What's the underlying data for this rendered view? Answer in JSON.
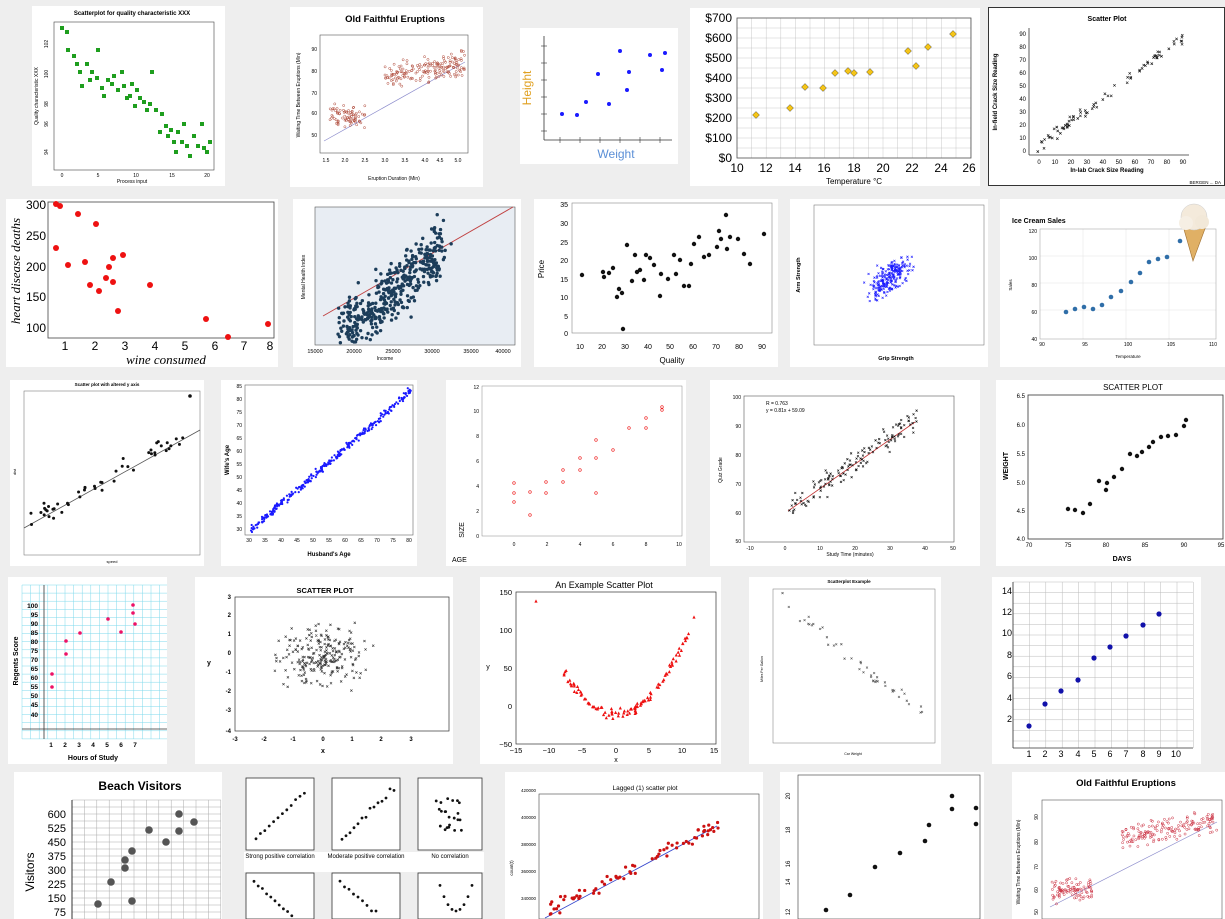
{
  "tiles": {
    "t1": {
      "title": "Scatterplot for quality characteristic XXX",
      "xlabel": "Process input",
      "ylabel": "Quality characteristic XXX",
      "xticks": [
        "0",
        "5",
        "10",
        "15",
        "20"
      ],
      "yticks": [
        "102",
        "100",
        "98",
        "96",
        "94"
      ]
    },
    "t2": {
      "title": "Old Faithful Eruptions",
      "xlabel": "Eruption Duration (Min)",
      "ylabel": "Waiting Time Between Eruptions (Min)",
      "xticks": [
        "1.5",
        "2.0",
        "2.5",
        "3.0",
        "3.5",
        "4.0",
        "4.5",
        "5.0"
      ],
      "yticks": [
        "90",
        "80",
        "70",
        "60",
        "50"
      ]
    },
    "t3": {
      "xlabel": "Weight",
      "ylabel": "Height"
    },
    "t4": {
      "xlabel": "Temperature °C",
      "xticks": [
        "10",
        "12",
        "14",
        "16",
        "18",
        "20",
        "22",
        "24",
        "26"
      ],
      "yticks": [
        "$700",
        "$600",
        "$500",
        "$400",
        "$300",
        "$200",
        "$100",
        "$0"
      ]
    },
    "t5": {
      "title": "Scatter Plot",
      "xlabel": "In-lab Crack Size Reading",
      "ylabel": "In-field Crack Size Reading",
      "xticks": [
        "0",
        "10",
        "20",
        "30",
        "40",
        "50",
        "60",
        "70",
        "80",
        "90"
      ],
      "yticks": [
        "90",
        "80",
        "70",
        "60",
        "50",
        "40",
        "30",
        "20",
        "10",
        "0"
      ],
      "watermark": "BERGEN ... DA"
    },
    "t6": {
      "xlabel": "wine consumed",
      "ylabel": "heart disease deaths",
      "xticks": [
        "1",
        "2",
        "3",
        "4",
        "5",
        "6",
        "7",
        "8"
      ],
      "yticks": [
        "300",
        "250",
        "200",
        "150",
        "100"
      ]
    },
    "t7": {
      "xlabel": "Income",
      "ylabel": "Mental Health Index",
      "xticks": [
        "15000",
        "20000",
        "25000",
        "30000",
        "35000",
        "40000"
      ]
    },
    "t8": {
      "xlabel": "Quality",
      "ylabel": "Price",
      "xticks": [
        "10",
        "20",
        "30",
        "40",
        "50",
        "60",
        "70",
        "80",
        "90"
      ],
      "yticks": [
        "35",
        "30",
        "25",
        "20",
        "15",
        "10",
        "5",
        "0"
      ]
    },
    "t9": {
      "xlabel": "Grip Strength",
      "ylabel": "Arm Strength"
    },
    "t10": {
      "title": "Ice Cream Sales",
      "xlabel": "Temperature",
      "ylabel": "Sales",
      "xticks": [
        "90",
        "95",
        "100",
        "105",
        "110"
      ],
      "yticks": [
        "120",
        "100",
        "80",
        "60",
        "40"
      ]
    },
    "t11": {
      "title": "Scatter plot with altered y axis",
      "xlabel": "speed",
      "ylabel": "dist"
    },
    "t12": {
      "xlabel": "Husband's Age",
      "ylabel": "Wife's Age",
      "xticks": [
        "30",
        "35",
        "40",
        "45",
        "50",
        "55",
        "60",
        "65",
        "70",
        "75",
        "80"
      ],
      "yticks": [
        "85",
        "80",
        "75",
        "70",
        "65",
        "60",
        "55",
        "50",
        "45",
        "40",
        "35",
        "30"
      ]
    },
    "t13": {
      "xlabel": "AGE",
      "ylabel": "SIZE",
      "xticks": [
        "0",
        "2",
        "4",
        "6",
        "8",
        "10"
      ],
      "yticks": [
        "12",
        "10",
        "8",
        "6",
        "4",
        "2",
        "0"
      ]
    },
    "t14": {
      "xlabel": "Study Time (minutes)",
      "ylabel": "Quiz Grade",
      "annotation1": "R = 0.763",
      "annotation2": "y = 0.81x + 59.09",
      "xticks": [
        "-10",
        "0",
        "10",
        "20",
        "30",
        "40",
        "50"
      ],
      "yticks": [
        "100",
        "90",
        "80",
        "70",
        "60",
        "50"
      ]
    },
    "t15": {
      "title": "SCATTER PLOT",
      "xlabel": "DAYS",
      "ylabel": "WEIGHT",
      "xticks": [
        "70",
        "75",
        "80",
        "85",
        "90",
        "95"
      ],
      "yticks": [
        "6.5",
        "6.0",
        "5.5",
        "5.0",
        "4.5",
        "4.0"
      ]
    },
    "t16": {
      "xlabel": "Hours of Study",
      "ylabel": "Regents Score",
      "xticks": [
        "1",
        "2",
        "3",
        "4",
        "5",
        "6",
        "7"
      ],
      "yticks": [
        "100",
        "95",
        "90",
        "85",
        "80",
        "75",
        "70",
        "65",
        "60",
        "55",
        "50",
        "45",
        "40"
      ]
    },
    "t17": {
      "title": "SCATTER PLOT",
      "xlabel": "x",
      "ylabel": "y",
      "xticks": [
        "-3",
        "-2",
        "-1",
        "0",
        "1",
        "2",
        "3"
      ],
      "yticks": [
        "3",
        "2",
        "1",
        "0",
        "-1",
        "-2",
        "-3",
        "-4"
      ]
    },
    "t18": {
      "title": "An Example Scatter Plot",
      "xlabel": "x",
      "ylabel": "y",
      "xticks": [
        "−15",
        "−10",
        "−5",
        "0",
        "5",
        "10",
        "15"
      ],
      "yticks": [
        "150",
        "100",
        "50",
        "0",
        "−50"
      ]
    },
    "t19": {
      "title": "Scatterplot Example",
      "xlabel": "Car Weight",
      "ylabel": "Miles Per Gallon"
    },
    "t20": {
      "xticks": [
        "1",
        "2",
        "3",
        "4",
        "5",
        "6",
        "7",
        "8",
        "9",
        "10"
      ],
      "yticks": [
        "14",
        "12",
        "10",
        "8",
        "6",
        "4",
        "2"
      ]
    },
    "t21": {
      "title": "Beach Visitors",
      "ylabel": "Visitors",
      "yticks": [
        "600",
        "525",
        "450",
        "375",
        "300",
        "225",
        "150",
        "75"
      ]
    },
    "t22": {
      "label1": "Strong positive correlation",
      "label2": "Moderate positive correlation",
      "label3": "No correlation"
    },
    "t23": {
      "title": "Lagged (1) scatter plot",
      "ylabel": "count(t)",
      "yticks": [
        "420000",
        "400000",
        "380000",
        "360000",
        "340000"
      ]
    },
    "t24": {
      "yticks": [
        "20",
        "18",
        "16",
        "14",
        "12"
      ]
    },
    "t25": {
      "title": "Old Faithful Eruptions",
      "ylabel": "Waiting Time Between Eruptions (Min)",
      "yticks": [
        "90",
        "80",
        "70",
        "60",
        "50"
      ]
    }
  },
  "colors": {
    "green": "#1e9e1e",
    "rust": "#b04a3a",
    "blue": "#1a1aff",
    "gold": "#f5c518",
    "red": "#ee1111",
    "navy": "#1c3d5a",
    "steel": "#2f6ea8"
  }
}
